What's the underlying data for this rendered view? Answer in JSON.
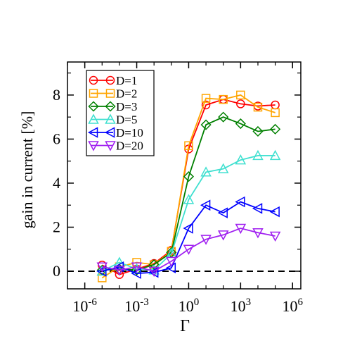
{
  "chart_data": {
    "type": "line",
    "xscale": "log",
    "xlabel": "Γ",
    "ylabel": "gain in current [%]",
    "xlim": [
      1e-07,
      3000000.0
    ],
    "ylim": [
      -0.8,
      9.5
    ],
    "x_ticks": [
      {
        "value": 1e-06,
        "base": "10",
        "exp": "-6"
      },
      {
        "value": 0.001,
        "base": "10",
        "exp": "-3"
      },
      {
        "value": 1,
        "base": "10",
        "exp": "0"
      },
      {
        "value": 1000.0,
        "base": "10",
        "exp": "3"
      },
      {
        "value": 1000000.0,
        "base": "10",
        "exp": "6"
      }
    ],
    "y_ticks": [
      0,
      2,
      4,
      6,
      8
    ],
    "reference_line": {
      "y": 0,
      "style": "dashed",
      "color": "#000000"
    },
    "legend": {
      "position": "top-left"
    },
    "x": [
      1e-05,
      0.0001,
      0.001,
      0.01,
      0.1,
      1,
      10,
      100,
      1000,
      10000,
      100000
    ],
    "series": [
      {
        "name": "D=1",
        "color": "#ff0000",
        "marker": "circle",
        "values": [
          0.28,
          -0.15,
          0.1,
          0.35,
          0.95,
          5.55,
          7.55,
          7.8,
          7.6,
          7.5,
          7.55
        ]
      },
      {
        "name": "D=2",
        "color": "#ffa500",
        "marker": "square",
        "values": [
          -0.3,
          0.2,
          0.4,
          0.3,
          0.9,
          5.7,
          7.85,
          7.8,
          8.0,
          7.45,
          7.2
        ]
      },
      {
        "name": "D=3",
        "color": "#008000",
        "marker": "diamond",
        "values": [
          0.05,
          0.1,
          0.05,
          0.3,
          0.85,
          4.3,
          6.65,
          7.0,
          6.7,
          6.35,
          6.45
        ]
      },
      {
        "name": "D=5",
        "color": "#40e0d0",
        "marker": "triangle-up",
        "values": [
          0.0,
          0.4,
          0.1,
          0.05,
          0.8,
          3.25,
          4.5,
          4.65,
          5.05,
          5.25,
          5.25
        ]
      },
      {
        "name": "D=10",
        "color": "#0000ff",
        "marker": "triangle-left",
        "values": [
          0.0,
          0.2,
          -0.1,
          -0.05,
          0.15,
          1.95,
          3.0,
          2.65,
          3.15,
          2.85,
          2.7
        ]
      },
      {
        "name": "D=20",
        "color": "#a020f0",
        "marker": "triangle-down",
        "values": [
          0.2,
          0.05,
          0.2,
          0.0,
          0.45,
          1.0,
          1.45,
          1.65,
          1.95,
          1.75,
          1.6
        ]
      }
    ]
  }
}
